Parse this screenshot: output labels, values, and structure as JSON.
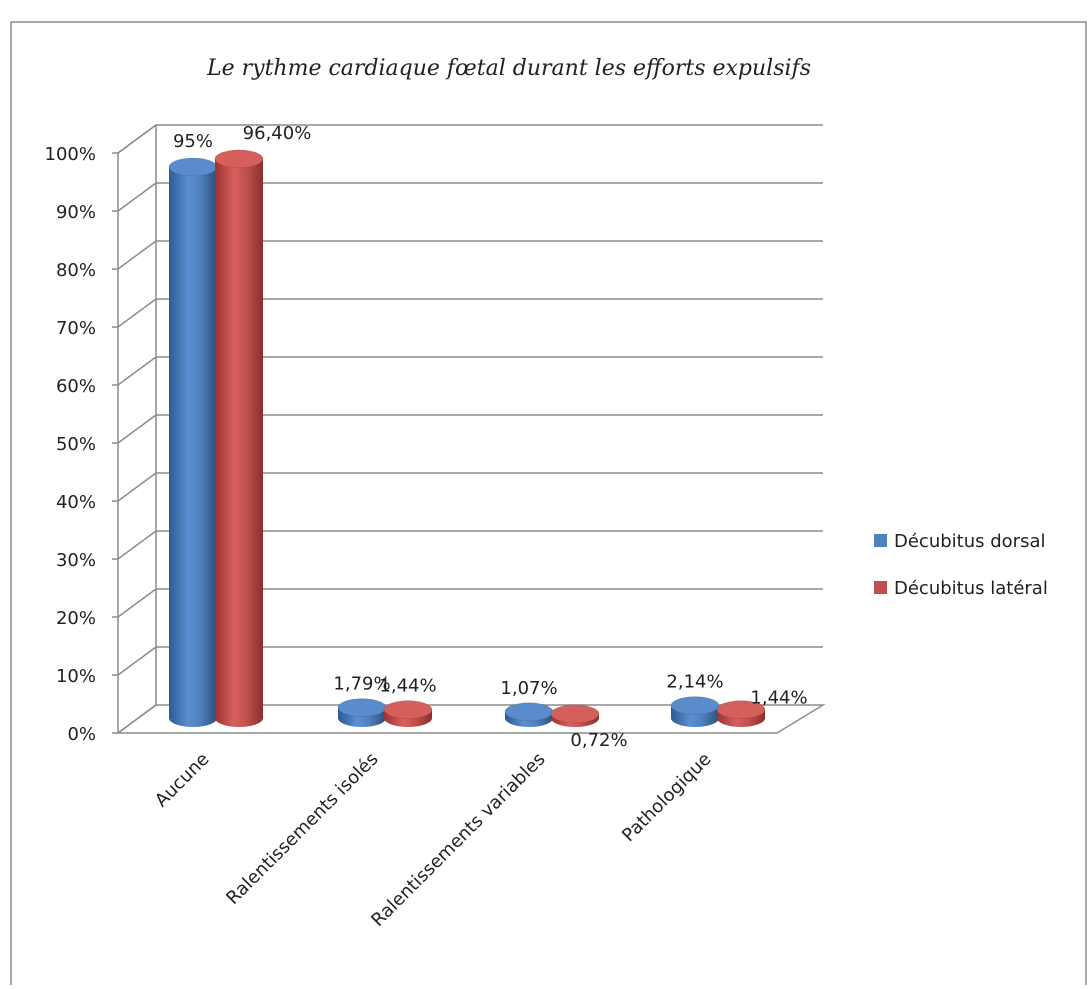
{
  "chart_data": {
    "type": "bar",
    "title": "Le rythme cardiaque fœtal durant les efforts expulsifs",
    "categories": [
      "Aucune",
      "Ralentissements isolés",
      "Ralentissements variables",
      "Pathologique"
    ],
    "series": [
      {
        "name": "Décubitus dorsal",
        "values": [
          95,
          1.79,
          1.07,
          2.14
        ],
        "labels": [
          "95%",
          "1,79%",
          "1,07%",
          "2,14%"
        ],
        "color": "#4f81bd"
      },
      {
        "name": "Décubitus latéral",
        "values": [
          96.4,
          1.44,
          0.72,
          1.44
        ],
        "labels": [
          "96,40%",
          "1,44%",
          "0,72%",
          "1,44%"
        ],
        "color": "#c0504d"
      }
    ],
    "yticks": [
      "0%",
      "10%",
      "20%",
      "30%",
      "40%",
      "50%",
      "60%",
      "70%",
      "80%",
      "90%",
      "100%"
    ],
    "ylim": [
      0,
      100
    ],
    "grid": true,
    "legend": "right"
  }
}
